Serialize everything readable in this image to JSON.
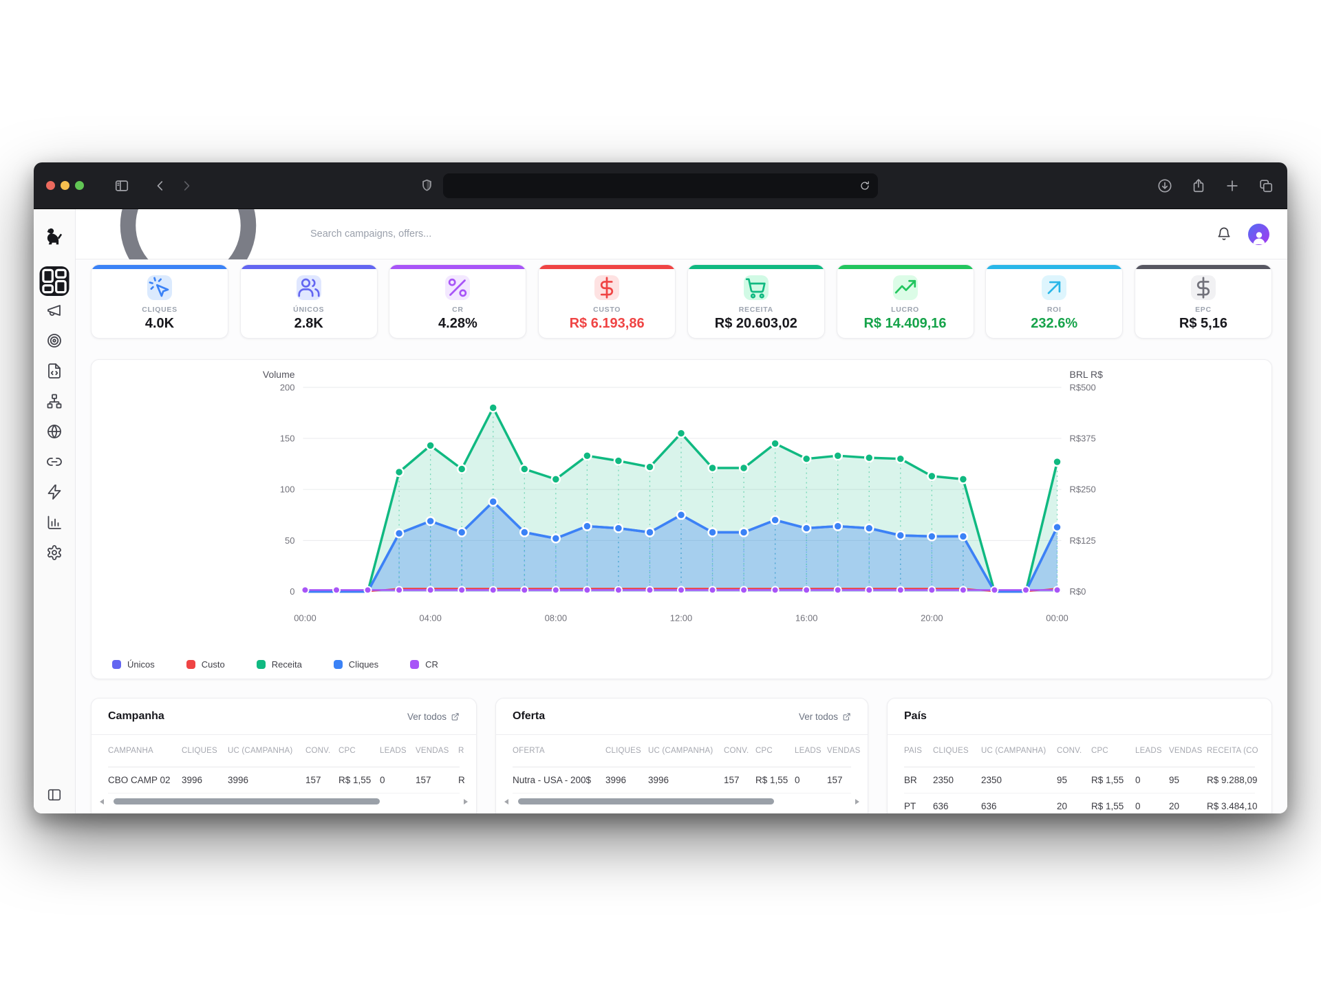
{
  "browser": {
    "url_value": "",
    "traffic_colors": {
      "close": "#ec6a5e",
      "minimize": "#f5bf4f",
      "zoom": "#61c554"
    }
  },
  "app": {
    "search_placeholder": "Search campaigns, offers..."
  },
  "sidebar": {
    "items": [
      {
        "name": "dashboard",
        "icon": "layout-dashboard",
        "active": true
      },
      {
        "name": "campaigns",
        "icon": "megaphone",
        "active": false
      },
      {
        "name": "offers",
        "icon": "target",
        "active": false
      },
      {
        "name": "landers",
        "icon": "file-code",
        "active": false
      },
      {
        "name": "flows",
        "icon": "network",
        "active": false
      },
      {
        "name": "domains",
        "icon": "globe",
        "active": false
      },
      {
        "name": "links",
        "icon": "link",
        "active": false
      },
      {
        "name": "automation",
        "icon": "zap",
        "active": false
      },
      {
        "name": "reports",
        "icon": "bar-chart",
        "active": false
      },
      {
        "name": "settings",
        "icon": "settings",
        "active": false
      }
    ],
    "bottom_icon": "panel-left"
  },
  "metrics": [
    {
      "label": "CLIQUES",
      "value": "4.0K",
      "accent": "#3b82f6",
      "icon": "cursor-click",
      "icon_bg": "#dbeafe",
      "icon_color": "#3b82f6",
      "value_color": "#17171c"
    },
    {
      "label": "ÚNICOS",
      "value": "2.8K",
      "accent": "#6366f1",
      "icon": "users",
      "icon_bg": "#e0e7ff",
      "icon_color": "#6366f1",
      "value_color": "#17171c"
    },
    {
      "label": "CR",
      "value": "4.28%",
      "accent": "#a855f7",
      "icon": "percent",
      "icon_bg": "#f3e8ff",
      "icon_color": "#a855f7",
      "value_color": "#17171c"
    },
    {
      "label": "CUSTO",
      "value": "R$ 6.193,86",
      "accent": "#ef4444",
      "icon": "dollar",
      "icon_bg": "#fee2e2",
      "icon_color": "#ef4444",
      "value_color": "#ef4444"
    },
    {
      "label": "RECEITA",
      "value": "R$ 20.603,02",
      "accent": "#10b981",
      "icon": "cart",
      "icon_bg": "#d1fae5",
      "icon_color": "#10b981",
      "value_color": "#17171c"
    },
    {
      "label": "LUCRO",
      "value": "R$ 14.409,16",
      "accent": "#22c55e",
      "icon": "trending-up",
      "icon_bg": "#dcfce7",
      "icon_color": "#22c55e",
      "value_color": "#16a34a"
    },
    {
      "label": "ROI",
      "value": "232.6%",
      "accent": "#29b6e8",
      "icon": "arrow-up-right",
      "icon_bg": "#def5fd",
      "icon_color": "#29b6e8",
      "value_color": "#16a34a"
    },
    {
      "label": "EPC",
      "value": "R$ 5,16",
      "accent": "#565661",
      "icon": "dollar",
      "icon_bg": "#f1f1f3",
      "icon_color": "#71717a",
      "value_color": "#17171c"
    }
  ],
  "chart_data": {
    "type": "area",
    "x_tick_labels": [
      "00:00",
      "04:00",
      "08:00",
      "12:00",
      "16:00",
      "20:00",
      "00:00"
    ],
    "x_tick_hours": [
      0,
      4,
      8,
      12,
      16,
      20,
      24
    ],
    "points": 25,
    "left_axis": {
      "title": "Volume",
      "ticks": [
        200,
        150,
        100,
        50,
        0
      ],
      "max": 200
    },
    "right_axis": {
      "title": "BRL R$",
      "ticks": [
        "R$500",
        "R$375",
        "R$250",
        "R$125",
        "R$0"
      ],
      "max": 500
    },
    "grid": "horizontal",
    "legend_position": "bottom-left",
    "series": [
      {
        "name": "Custo",
        "color": "#ef4444",
        "width": 2,
        "dots": false,
        "fill": 0,
        "values": [
          0,
          0,
          0,
          3,
          3,
          3,
          3,
          3,
          3,
          3,
          3,
          3,
          3,
          3,
          3,
          3,
          3,
          3,
          3,
          3,
          3,
          3,
          0,
          0,
          3
        ]
      },
      {
        "name": "Receita",
        "color": "#10b981",
        "width": 3.5,
        "dots": true,
        "fill": 0.16,
        "values": [
          0,
          0,
          0,
          117,
          143,
          120,
          180,
          120,
          110,
          133,
          128,
          122,
          155,
          121,
          121,
          145,
          130,
          133,
          131,
          130,
          113,
          110,
          0,
          0,
          127
        ]
      },
      {
        "name": "Únicos",
        "color": "#6366f1",
        "width": 3.5,
        "dots": false,
        "fill": 0,
        "note": "overlaps Cliques line",
        "values": [
          0,
          0,
          0,
          57,
          69,
          58,
          88,
          58,
          52,
          64,
          62,
          58,
          75,
          58,
          58,
          70,
          62,
          64,
          62,
          55,
          54,
          54,
          0,
          0,
          63
        ]
      },
      {
        "name": "Cliques",
        "color": "#3b82f6",
        "width": 3.5,
        "dots": true,
        "fill": 0.32,
        "values": [
          0,
          0,
          0,
          57,
          69,
          58,
          88,
          58,
          52,
          64,
          62,
          58,
          75,
          58,
          58,
          70,
          62,
          64,
          62,
          55,
          54,
          54,
          0,
          0,
          63
        ]
      },
      {
        "name": "CR",
        "color": "#a855f7",
        "width": 2.5,
        "dots": true,
        "fill": 0,
        "values": [
          1.5,
          1.5,
          1.5,
          1.5,
          1.5,
          1.5,
          1.5,
          1.5,
          1.5,
          1.5,
          1.5,
          1.5,
          1.5,
          1.5,
          1.5,
          1.5,
          1.5,
          1.5,
          1.5,
          1.5,
          1.5,
          1.5,
          1.5,
          1.5,
          1.5
        ]
      }
    ],
    "legend": [
      {
        "label": "Únicos",
        "color": "#6366f1"
      },
      {
        "label": "Custo",
        "color": "#ef4444"
      },
      {
        "label": "Receita",
        "color": "#10b981"
      },
      {
        "label": "Cliques",
        "color": "#3b82f6"
      },
      {
        "label": "CR",
        "color": "#a855f7"
      }
    ]
  },
  "tables": [
    {
      "title": "Campanha",
      "link": "Ver todos",
      "scrollbar": true,
      "columns": [
        "CAMPANHA",
        "CLIQUES",
        "UC (CAMPANHA)",
        "CONV.",
        "CPC",
        "LEADS",
        "VENDAS",
        "R"
      ],
      "rows": [
        [
          "CBO CAMP 02",
          "3996",
          "3996",
          "157",
          "R$ 1,55",
          "0",
          "157",
          "R"
        ]
      ]
    },
    {
      "title": "Oferta",
      "link": "Ver todos",
      "scrollbar": true,
      "columns": [
        "OFERTA",
        "CLIQUES",
        "UC (CAMPANHA)",
        "CONV.",
        "CPC",
        "LEADS",
        "VENDAS"
      ],
      "rows": [
        [
          "Nutra - USA - 200$",
          "3996",
          "3996",
          "157",
          "R$ 1,55",
          "0",
          "157"
        ]
      ]
    },
    {
      "title": "País",
      "link": "",
      "scrollbar": false,
      "columns": [
        "PAÍS",
        "CLIQUES",
        "UC (CAMPANHA)",
        "CONV.",
        "CPC",
        "LEADS",
        "VENDAS",
        "RECEITA (CO"
      ],
      "rows": [
        [
          "BR",
          "2350",
          "2350",
          "95",
          "R$ 1,55",
          "0",
          "95",
          "R$ 9.288,09"
        ],
        [
          "PT",
          "636",
          "636",
          "20",
          "R$ 1,55",
          "0",
          "20",
          "R$ 3.484,10"
        ]
      ]
    }
  ]
}
